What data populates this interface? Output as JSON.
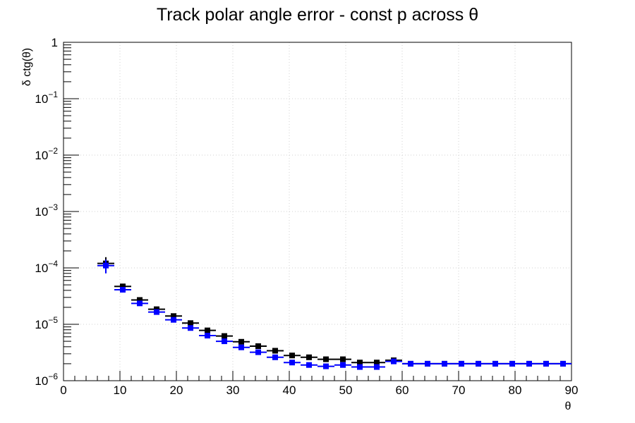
{
  "chart_data": {
    "type": "scatter",
    "title": "Track polar angle error - const p across θ",
    "xlabel": "θ",
    "ylabel": "δ ctg(θ)",
    "xlim": [
      0,
      90
    ],
    "ylim": [
      1e-06,
      1
    ],
    "yscale": "log",
    "grid": true,
    "x_ticks": [
      "0",
      "10",
      "20",
      "30",
      "40",
      "50",
      "60",
      "70",
      "80",
      "90"
    ],
    "y_ticks": [
      {
        "base": "10",
        "exp": "−6"
      },
      {
        "base": "10",
        "exp": "−5"
      },
      {
        "base": "10",
        "exp": "−4"
      },
      {
        "base": "10",
        "exp": "−3"
      },
      {
        "base": "10",
        "exp": "−2"
      },
      {
        "base": "10",
        "exp": "−1"
      },
      {
        "base": "1",
        "exp": ""
      }
    ],
    "x_bin_halfwidth": 1.5,
    "series": [
      {
        "color": "#000000",
        "x": [
          7.5,
          10.5,
          13.5,
          16.5,
          19.5,
          22.5,
          25.5,
          28.5,
          31.5,
          34.5,
          37.5,
          40.5,
          43.5,
          46.5,
          49.5,
          52.5,
          55.5,
          58.5,
          61.5,
          64.5,
          67.5,
          70.5,
          73.5,
          76.5,
          79.5,
          82.5,
          85.5,
          88.5
        ],
        "y": [
          0.00012,
          4.7e-05,
          2.7e-05,
          1.85e-05,
          1.4e-05,
          1.05e-05,
          7.8e-06,
          6.2e-06,
          4.9e-06,
          4.1e-06,
          3.4e-06,
          2.8e-06,
          2.6e-06,
          2.4e-06,
          2.4e-06,
          2.1e-06,
          2.1e-06,
          2.3e-06,
          2e-06,
          2e-06,
          2e-06,
          2e-06,
          2e-06,
          2e-06,
          2e-06,
          2e-06,
          2e-06,
          2e-06
        ],
        "yerr": [
          3.5e-05,
          4e-06,
          2e-06,
          1e-06,
          1e-06,
          0,
          0,
          0,
          0,
          0,
          0,
          0,
          0,
          0,
          0,
          0,
          0,
          0,
          0,
          0,
          0,
          0,
          0,
          0,
          0,
          0,
          0,
          0
        ]
      },
      {
        "color": "#0000ff",
        "x": [
          7.5,
          10.5,
          13.5,
          16.5,
          19.5,
          22.5,
          25.5,
          28.5,
          31.5,
          34.5,
          37.5,
          40.5,
          43.5,
          46.5,
          49.5,
          52.5,
          55.5,
          58.5,
          61.5,
          64.5,
          67.5,
          70.5,
          73.5,
          76.5,
          79.5,
          82.5,
          85.5,
          88.5
        ],
        "y": [
          0.00011,
          4.1e-05,
          2.35e-05,
          1.65e-05,
          1.2e-05,
          8.6e-06,
          6.3e-06,
          5e-06,
          3.9e-06,
          3.2e-06,
          2.6e-06,
          2.1e-06,
          1.9e-06,
          1.8e-06,
          1.9e-06,
          1.75e-06,
          1.75e-06,
          2.2e-06,
          2e-06,
          2e-06,
          2e-06,
          2e-06,
          2e-06,
          2e-06,
          2e-06,
          2e-06,
          2e-06,
          2e-06
        ],
        "yerr": [
          3e-05,
          4e-06,
          2e-06,
          1e-06,
          1e-06,
          0,
          0,
          0,
          0,
          0,
          0,
          0,
          0,
          0,
          0,
          0,
          0,
          0,
          0,
          0,
          0,
          0,
          0,
          0,
          0,
          0,
          0,
          0
        ]
      }
    ]
  }
}
